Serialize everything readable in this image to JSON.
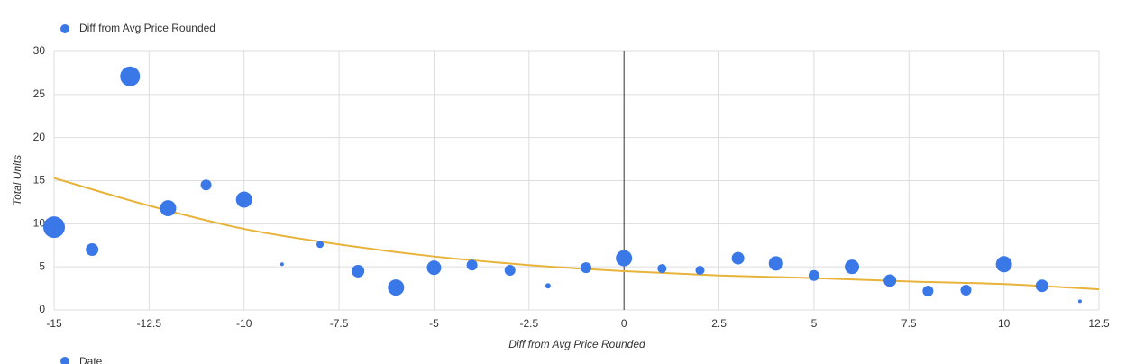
{
  "chart_data": {
    "type": "bubble",
    "x_label": "Diff from Avg Price Rounded",
    "y_label": "Total Units",
    "xlim": [
      -15,
      12.5
    ],
    "xticks": [
      -15,
      -12.5,
      -10,
      -7.5,
      -5,
      -2.5,
      0,
      2.5,
      5,
      7.5,
      10,
      12.5
    ],
    "ylim": [
      0,
      30
    ],
    "yticks": [
      0,
      5,
      10,
      15,
      20,
      25,
      30
    ],
    "grid": true,
    "legend": "top-left",
    "series": [
      {
        "name": "Diff from Avg Price Rounded",
        "color": "#3b78e7",
        "x": [
          -15,
          -14,
          -13,
          -12,
          -11,
          -10,
          -9,
          -8,
          -7,
          -6,
          -5,
          -4,
          -3,
          -2,
          -1,
          0,
          1,
          2,
          3,
          4,
          5,
          6,
          7,
          8,
          9,
          10,
          11,
          12
        ],
        "values": [
          9.6,
          7.0,
          27.1,
          11.8,
          14.5,
          12.8,
          5.3,
          7.6,
          4.5,
          2.6,
          4.9,
          5.2,
          4.6,
          2.8,
          4.9,
          6.0,
          4.8,
          4.6,
          6.0,
          5.4,
          4.0,
          5.0,
          3.4,
          2.2,
          2.3,
          5.3,
          2.8,
          1.0
        ],
        "sizes": [
          12,
          7,
          11,
          9,
          6,
          9,
          2,
          4,
          7,
          9,
          8,
          6,
          6,
          3,
          6,
          9,
          5,
          5,
          7,
          8,
          6,
          8,
          7,
          6,
          6,
          9,
          7,
          2
        ]
      }
    ],
    "trendline": {
      "color": "#e8b33a",
      "x": [
        -15,
        -12.5,
        -10,
        -7.5,
        -5,
        -2.5,
        0,
        2.5,
        5,
        7.5,
        10,
        12.5
      ],
      "values": [
        15.3,
        12.1,
        9.4,
        7.6,
        6.2,
        5.2,
        4.5,
        4.0,
        3.7,
        3.3,
        3.0,
        2.4
      ]
    },
    "secondary_legend": "Date"
  }
}
